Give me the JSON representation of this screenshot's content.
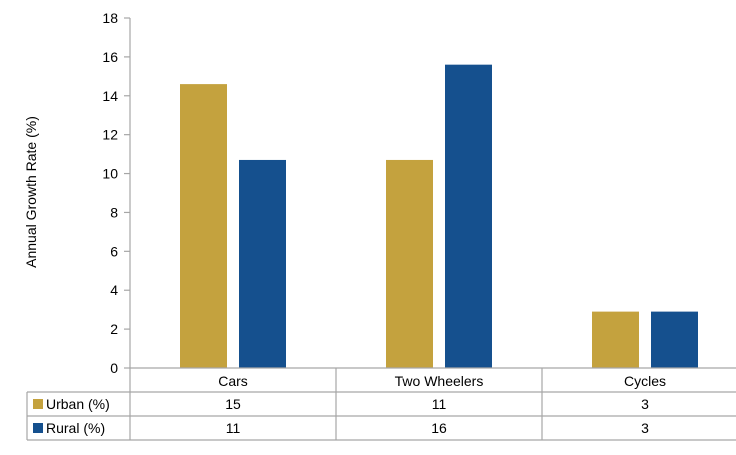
{
  "chart_data": {
    "type": "bar",
    "title": "",
    "xlabel": "",
    "ylabel": "Annual Growth Rate (%)",
    "ylim": [
      0,
      18
    ],
    "yticks": [
      0,
      2,
      4,
      6,
      8,
      10,
      12,
      14,
      16,
      18
    ],
    "categories": [
      "Cars",
      "Two Wheelers",
      "Cycles"
    ],
    "series": [
      {
        "name": "Urban (%)",
        "color": "#C4A23E",
        "values": [
          14.6,
          10.7,
          2.9
        ],
        "table_values": [
          "15",
          "11",
          "3"
        ]
      },
      {
        "name": "Rural (%)",
        "color": "#15508E",
        "values": [
          10.7,
          15.6,
          2.9
        ],
        "table_values": [
          "11",
          "16",
          "3"
        ]
      }
    ],
    "grid": false,
    "legend": "data-table"
  }
}
